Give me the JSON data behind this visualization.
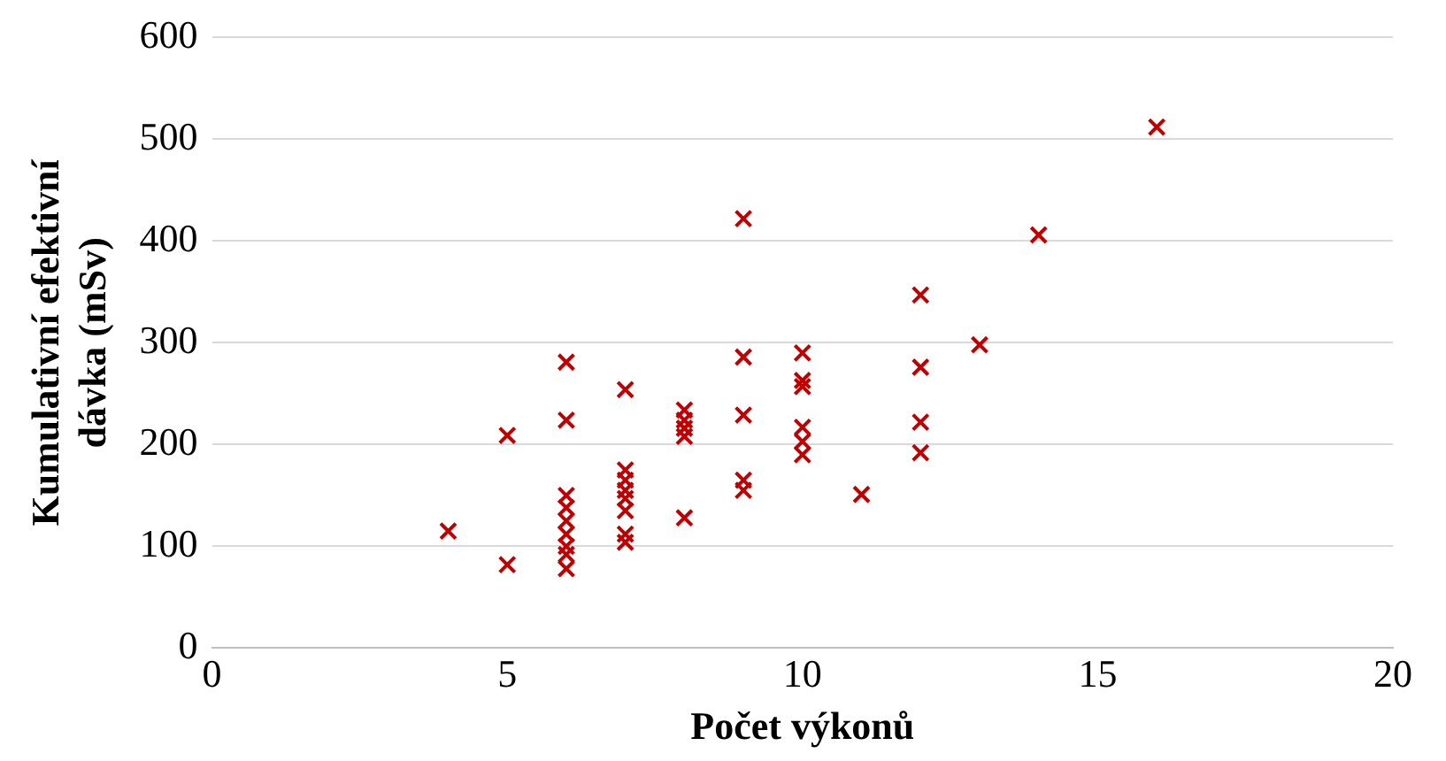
{
  "chart_data": {
    "type": "scatter",
    "xlabel": "Počet výkonů",
    "ylabel": "Kumulativní efektivní dávka (mSv)",
    "x": [
      4,
      5,
      5,
      6,
      6,
      6,
      6,
      6,
      6,
      6,
      6,
      6,
      7,
      7,
      7,
      7,
      7,
      7,
      7,
      7,
      8,
      8,
      8,
      8,
      8,
      9,
      9,
      9,
      9,
      9,
      10,
      10,
      10,
      10,
      10,
      10,
      11,
      12,
      12,
      12,
      12,
      13,
      14,
      16
    ],
    "series": [
      {
        "color": "#c00000",
        "values": [
          115,
          209,
          82,
          281,
          224,
          150,
          138,
          125,
          112,
          100,
          92,
          78,
          254,
          175,
          165,
          155,
          147,
          135,
          112,
          104,
          234,
          224,
          216,
          208,
          128,
          422,
          286,
          229,
          165,
          155,
          290,
          263,
          257,
          217,
          203,
          190,
          151,
          347,
          276,
          222,
          192,
          298,
          406,
          512
        ]
      }
    ],
    "xlim": [
      0,
      20
    ],
    "xticks": [
      0,
      5,
      10,
      15,
      20
    ],
    "ylim": [
      0,
      600
    ],
    "yticks": [
      0,
      100,
      200,
      300,
      400,
      500,
      600
    ],
    "grid": "y",
    "marker": "cross",
    "legend": false
  }
}
